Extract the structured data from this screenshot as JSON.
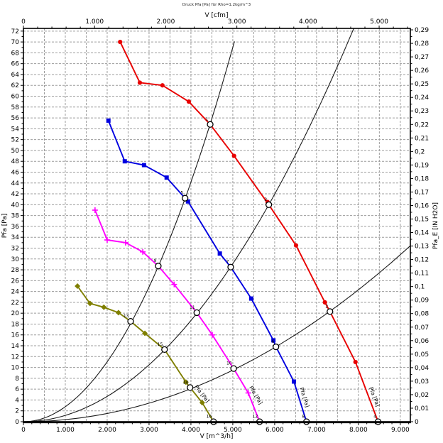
{
  "chart_data": {
    "type": "line",
    "title": "Druck Pfa [Pa] für Rho=1.2kg/m^3",
    "x_axis_bottom": {
      "label": "V [m^3/h]",
      "min": 0,
      "max": 9240,
      "major_tick": 1000,
      "minor_tick": 200,
      "tick_labels": [
        "0",
        "1.000",
        "2.000",
        "3.000",
        "4.000",
        "5.000",
        "6.000",
        "7.000",
        "8.000",
        "9.000"
      ]
    },
    "x_axis_top": {
      "label": "V [cfm]",
      "min": 0,
      "max": 5438,
      "major_tick": 1000,
      "minor_tick": 200,
      "cfm_per_m3h": 0.58858,
      "tick_labels": [
        "0",
        "1.000",
        "2.000",
        "3.000",
        "4.000",
        "5.000"
      ]
    },
    "y_axis_left": {
      "label": "Pfa [Pa]",
      "min": 0,
      "max": 72.5,
      "major_tick": 2,
      "minor_tick": 1,
      "tick_labels": [
        "0",
        "2",
        "4",
        "6",
        "8",
        "10",
        "12",
        "14",
        "16",
        "18",
        "20",
        "22",
        "24",
        "26",
        "28",
        "30",
        "32",
        "34",
        "36",
        "38",
        "40",
        "42",
        "44",
        "46",
        "48",
        "50",
        "52",
        "54",
        "56",
        "58",
        "60",
        "62",
        "64",
        "66",
        "68",
        "70",
        "72"
      ]
    },
    "y_axis_right": {
      "label": "Pfa_E [IN H2O]",
      "min": 0,
      "max": 0.291,
      "major_tick": 0.01,
      "minor_tick": 0.005,
      "pa_per_inh2o": 249.08,
      "tick_labels": [
        "0",
        "0,01",
        "0,02",
        "0,03",
        "0,04",
        "0,05",
        "0,06",
        "0,07",
        "0,08",
        "0,09",
        "0,1",
        "0,11",
        "0,12",
        "0,13",
        "0,14",
        "0,15",
        "0,16",
        "0,17",
        "0,18",
        "0,19",
        "0,2",
        "0,21",
        "0,22",
        "0,23",
        "0,24",
        "0,25",
        "0,26",
        "0,27",
        "0,28",
        "0,29"
      ]
    },
    "grid": {
      "x_step": 500,
      "y_step": 2,
      "color": "#9c9c9c"
    },
    "frame_color": "#000000",
    "fan_curves": [
      {
        "name": "fan-curve-1",
        "label": "Pfa [Pa]",
        "color": "#e80000",
        "marker": "circle",
        "points": [
          [
            2310,
            70
          ],
          [
            2780,
            62.5
          ],
          [
            3320,
            62
          ],
          [
            3950,
            59
          ],
          [
            4460,
            54.8
          ],
          [
            5030,
            49
          ],
          [
            5860,
            40
          ],
          [
            6510,
            32.5
          ],
          [
            7200,
            22
          ],
          [
            7320,
            20.3
          ],
          [
            7930,
            11
          ],
          [
            8470,
            0
          ]
        ],
        "marker_points": [
          [
            2310,
            70
          ],
          [
            2780,
            62.5
          ],
          [
            3320,
            62
          ],
          [
            3950,
            59
          ],
          [
            5030,
            49
          ],
          [
            5830,
            40.5
          ],
          [
            6510,
            32.5
          ],
          [
            7200,
            22
          ],
          [
            7930,
            11
          ]
        ]
      },
      {
        "name": "fan-curve-2",
        "label": "Pfa [Pa]",
        "color": "#0000e0",
        "marker": "square",
        "points": [
          [
            2030,
            55.5
          ],
          [
            2420,
            48
          ],
          [
            2880,
            47.3
          ],
          [
            3420,
            45
          ],
          [
            3860,
            41.2
          ],
          [
            3930,
            40.6
          ],
          [
            4690,
            31
          ],
          [
            4950,
            28.5
          ],
          [
            5440,
            22.7
          ],
          [
            5970,
            15
          ],
          [
            6030,
            13.8
          ],
          [
            6460,
            7.4
          ],
          [
            6760,
            0
          ]
        ],
        "marker_points": [
          [
            2030,
            55.5
          ],
          [
            2420,
            48
          ],
          [
            2880,
            47.3
          ],
          [
            3420,
            45
          ],
          [
            3930,
            40.6
          ],
          [
            4690,
            31
          ],
          [
            5440,
            22.7
          ],
          [
            5970,
            15
          ],
          [
            6460,
            7.4
          ]
        ]
      },
      {
        "name": "fan-curve-3",
        "label": "Pfa [Pa]",
        "color": "#ff00ff",
        "marker": "plus",
        "points": [
          [
            1710,
            39
          ],
          [
            2000,
            33.5
          ],
          [
            2440,
            33
          ],
          [
            2850,
            31.3
          ],
          [
            3220,
            28.7
          ],
          [
            3600,
            25.3
          ],
          [
            4140,
            20.1
          ],
          [
            4510,
            16
          ],
          [
            5020,
            9.8
          ],
          [
            5370,
            5.3
          ],
          [
            5640,
            0
          ]
        ],
        "marker_points": [
          [
            1710,
            39
          ],
          [
            2000,
            33.5
          ],
          [
            2440,
            33
          ],
          [
            2850,
            31.3
          ],
          [
            3600,
            25.3
          ],
          [
            4510,
            16
          ],
          [
            5370,
            5.3
          ]
        ]
      },
      {
        "name": "fan-curve-4",
        "label": "Pfa [Pa]",
        "color": "#7f7f00",
        "marker": "diamond",
        "points": [
          [
            1290,
            25
          ],
          [
            1590,
            21.8
          ],
          [
            1920,
            21.1
          ],
          [
            2270,
            20.1
          ],
          [
            2560,
            18.5
          ],
          [
            2900,
            16.3
          ],
          [
            3370,
            13.3
          ],
          [
            3880,
            7.3
          ],
          [
            3980,
            6.3
          ],
          [
            4270,
            3.5
          ],
          [
            4540,
            0
          ]
        ],
        "marker_points": [
          [
            1290,
            25
          ],
          [
            1590,
            21.8
          ],
          [
            1920,
            21.1
          ],
          [
            2270,
            20.1
          ],
          [
            2900,
            16.3
          ],
          [
            3880,
            7.3
          ],
          [
            4270,
            3.5
          ]
        ]
      }
    ],
    "system_curves": [
      {
        "name": "system-curve-steep",
        "k": 2.76e-06,
        "color": "#1a1a1a"
      },
      {
        "name": "system-curve-medium",
        "k": 1.165e-06,
        "color": "#1a1a1a"
      },
      {
        "name": "system-curve-shallow",
        "k": 3.8e-07,
        "color": "#1a1a1a"
      }
    ],
    "operating_points": [
      {
        "n": "1",
        "v": 4460,
        "p": 54.8
      },
      {
        "n": "2",
        "v": 7320,
        "p": 20.3
      },
      {
        "n": "3",
        "v": 5860,
        "p": 40.0
      },
      {
        "n": "4",
        "v": 8470,
        "p": 0
      },
      {
        "n": "5",
        "v": 3860,
        "p": 41.2
      },
      {
        "n": "6",
        "v": 6030,
        "p": 13.8
      },
      {
        "n": "7",
        "v": 4950,
        "p": 28.5
      },
      {
        "n": "8",
        "v": 6760,
        "p": 0
      },
      {
        "n": "9",
        "v": 3220,
        "p": 28.7
      },
      {
        "n": "10",
        "v": 5020,
        "p": 9.8
      },
      {
        "n": "11",
        "v": 4140,
        "p": 20.1
      },
      {
        "n": "12",
        "v": 5640,
        "p": 0
      },
      {
        "n": "13",
        "v": 2560,
        "p": 18.5
      },
      {
        "n": "14",
        "v": 3980,
        "p": 6.3
      },
      {
        "n": "15",
        "v": 3370,
        "p": 13.3
      },
      {
        "n": "16",
        "v": 4540,
        "p": 0
      }
    ]
  }
}
